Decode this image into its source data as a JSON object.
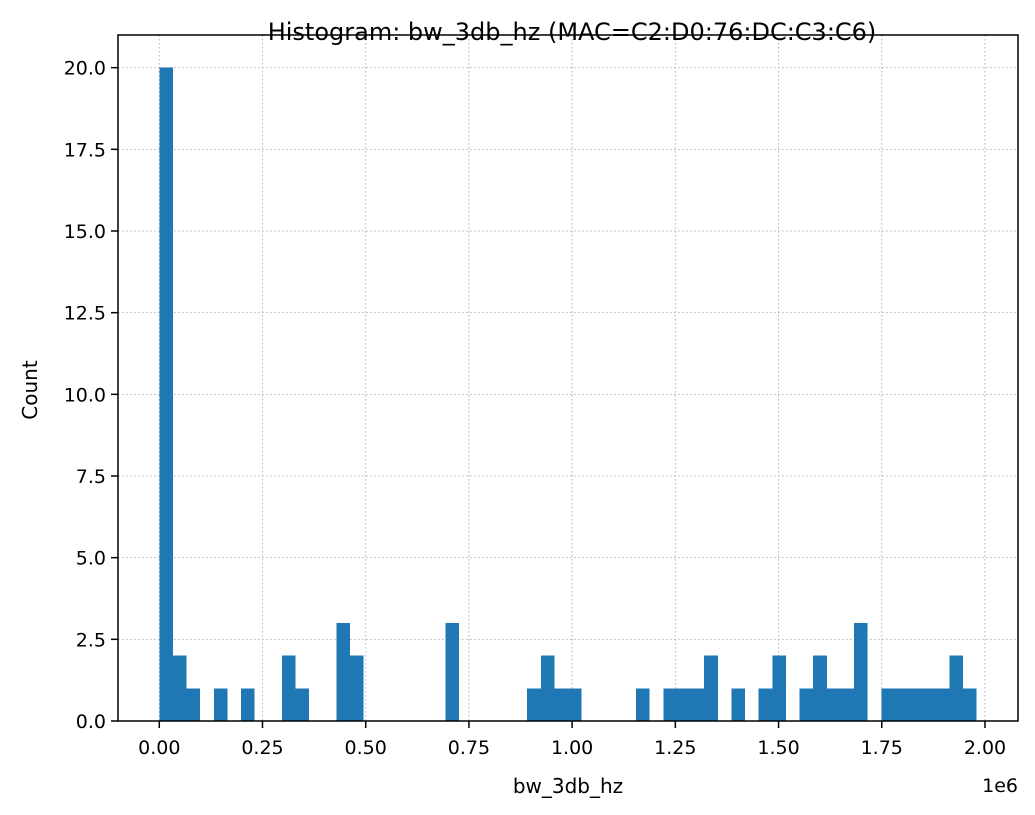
{
  "chart_data": {
    "type": "bar",
    "title": "Histogram: bw_3db_hz (MAC=C2:D0:76:DC:C3:C6)",
    "xlabel": "bw_3db_hz",
    "ylabel": "Count",
    "x_offset_label": "1e6",
    "xlim": [
      -0.1,
      2.08
    ],
    "ylim": [
      0,
      21
    ],
    "x_ticks": [
      0.0,
      0.25,
      0.5,
      0.75,
      1.0,
      1.25,
      1.5,
      1.75,
      2.0
    ],
    "x_tick_labels": [
      "0.00",
      "0.25",
      "0.50",
      "0.75",
      "1.00",
      "1.25",
      "1.50",
      "1.75",
      "2.00"
    ],
    "y_ticks": [
      0,
      2.5,
      5,
      7.5,
      10,
      12.5,
      15,
      17.5,
      20
    ],
    "y_tick_labels": [
      "0.0",
      "2.5",
      "5.0",
      "7.5",
      "10.0",
      "12.5",
      "15.0",
      "17.5",
      "20.0"
    ],
    "grid": true,
    "bar_color": "#1f77b4",
    "bin_width": 0.033,
    "bins_start": [
      0.0,
      0.033,
      0.066,
      0.132,
      0.198,
      0.297,
      0.33,
      0.429,
      0.462,
      0.693,
      0.891,
      0.924,
      0.957,
      0.99,
      1.155,
      1.221,
      1.254,
      1.287,
      1.32,
      1.386,
      1.452,
      1.485,
      1.551,
      1.584,
      1.617,
      1.65,
      1.683,
      1.749,
      1.782,
      1.815,
      1.848,
      1.881,
      1.914,
      1.947
    ],
    "values": [
      20,
      2,
      1,
      1,
      1,
      2,
      1,
      3,
      2,
      3,
      1,
      2,
      1,
      1,
      1,
      1,
      1,
      1,
      2,
      1,
      1,
      2,
      1,
      2,
      1,
      1,
      3,
      1,
      1,
      1,
      1,
      1,
      2,
      1
    ]
  }
}
